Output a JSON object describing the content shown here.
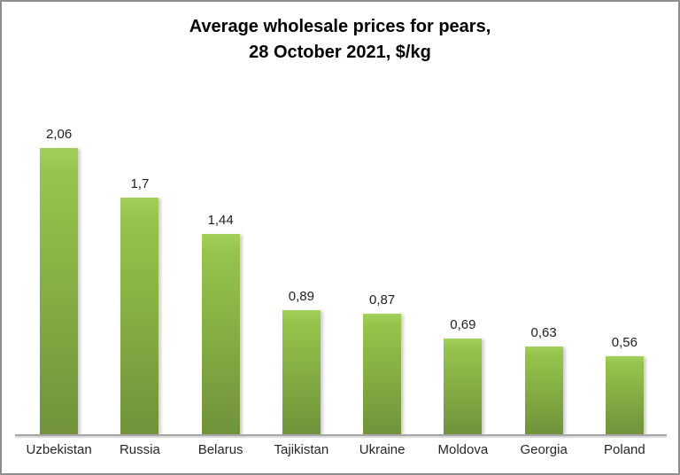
{
  "title": {
    "line1": "Average wholesale prices for pears,",
    "line2": "28 October 2021, $/kg"
  },
  "chart_data": {
    "type": "bar",
    "title": "Average wholesale prices for pears, 28 October 2021, $/kg",
    "categories": [
      "Uzbekistan",
      "Russia",
      "Belarus",
      "Tajikistan",
      "Ukraine",
      "Moldova",
      "Georgia",
      "Poland"
    ],
    "values": [
      2.06,
      1.7,
      1.44,
      0.89,
      0.87,
      0.69,
      0.63,
      0.56
    ],
    "value_labels": [
      "2,06",
      "1,7",
      "1,44",
      "0,89",
      "0,87",
      "0,69",
      "0,63",
      "0,56"
    ],
    "xlabel": "",
    "ylabel": "",
    "ylim": [
      0,
      2.49
    ],
    "grid": false,
    "legend": false,
    "data_labels": true,
    "decimal_separator": ",",
    "bar_color_top": "#a3d05a",
    "bar_color_mid": "#96c44b",
    "bar_color_bottom": "#71923a",
    "axis_color": "#a6a6a6",
    "label_color": "#1f1f1f",
    "category_color": "#262626",
    "background_color": "#ffffff",
    "border_color": "#8e8e8e"
  }
}
